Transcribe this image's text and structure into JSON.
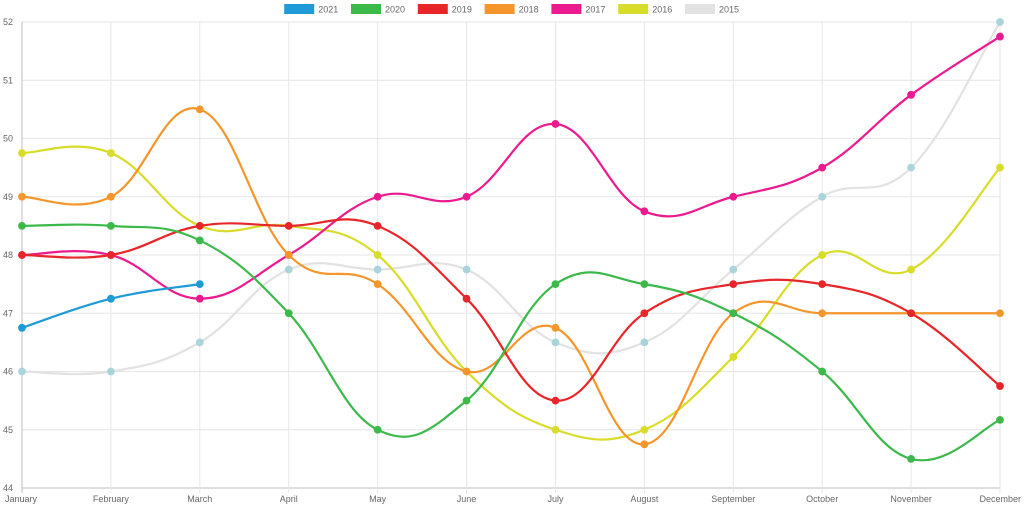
{
  "chart_data": {
    "type": "line",
    "title": "",
    "xlabel": "",
    "ylabel": "",
    "categories": [
      "January",
      "February",
      "March",
      "April",
      "May",
      "June",
      "July",
      "August",
      "September",
      "October",
      "November",
      "December"
    ],
    "ylim": [
      44,
      52
    ],
    "yticks": [
      "44",
      "45",
      "46",
      "47",
      "48",
      "49",
      "50",
      "51",
      "52"
    ],
    "grid": true,
    "legend_position": "top-center",
    "curve": "smooth",
    "series": [
      {
        "name": "2021",
        "color": "#1e9ad6",
        "values": [
          46.75,
          47.25,
          47.5,
          null,
          null,
          null,
          null,
          null,
          null,
          null,
          null,
          null
        ]
      },
      {
        "name": "2020",
        "color": "#3cb94a",
        "values": [
          48.5,
          48.5,
          48.25,
          47.0,
          45.0,
          45.5,
          47.5,
          47.5,
          47.0,
          46.0,
          44.5,
          45.17
        ]
      },
      {
        "name": "2019",
        "color": "#e8262a",
        "values": [
          48.0,
          48.0,
          48.5,
          48.5,
          48.5,
          47.25,
          45.5,
          47.0,
          47.5,
          47.5,
          47.0,
          45.75
        ]
      },
      {
        "name": "2018",
        "color": "#f4962b",
        "values": [
          49.0,
          49.0,
          50.5,
          48.0,
          47.5,
          46.0,
          46.75,
          44.75,
          47.0,
          47.0,
          47.0,
          47.0
        ]
      },
      {
        "name": "2017",
        "color": "#ec1a8f",
        "values": [
          48.0,
          48.0,
          47.25,
          48.0,
          49.0,
          49.0,
          50.25,
          48.75,
          49.0,
          49.5,
          50.75,
          51.75
        ]
      },
      {
        "name": "2016",
        "color": "#d8dc2a",
        "values": [
          49.75,
          49.75,
          48.5,
          48.5,
          48.0,
          46.0,
          45.0,
          45.0,
          46.25,
          48.0,
          47.75,
          49.5
        ]
      },
      {
        "name": "2015",
        "color": "#e2e2e2",
        "point_color": "#a9d4dc",
        "values": [
          46.0,
          46.0,
          46.5,
          47.75,
          47.75,
          47.75,
          46.5,
          46.5,
          47.75,
          49.0,
          49.5,
          52.0
        ]
      }
    ]
  }
}
